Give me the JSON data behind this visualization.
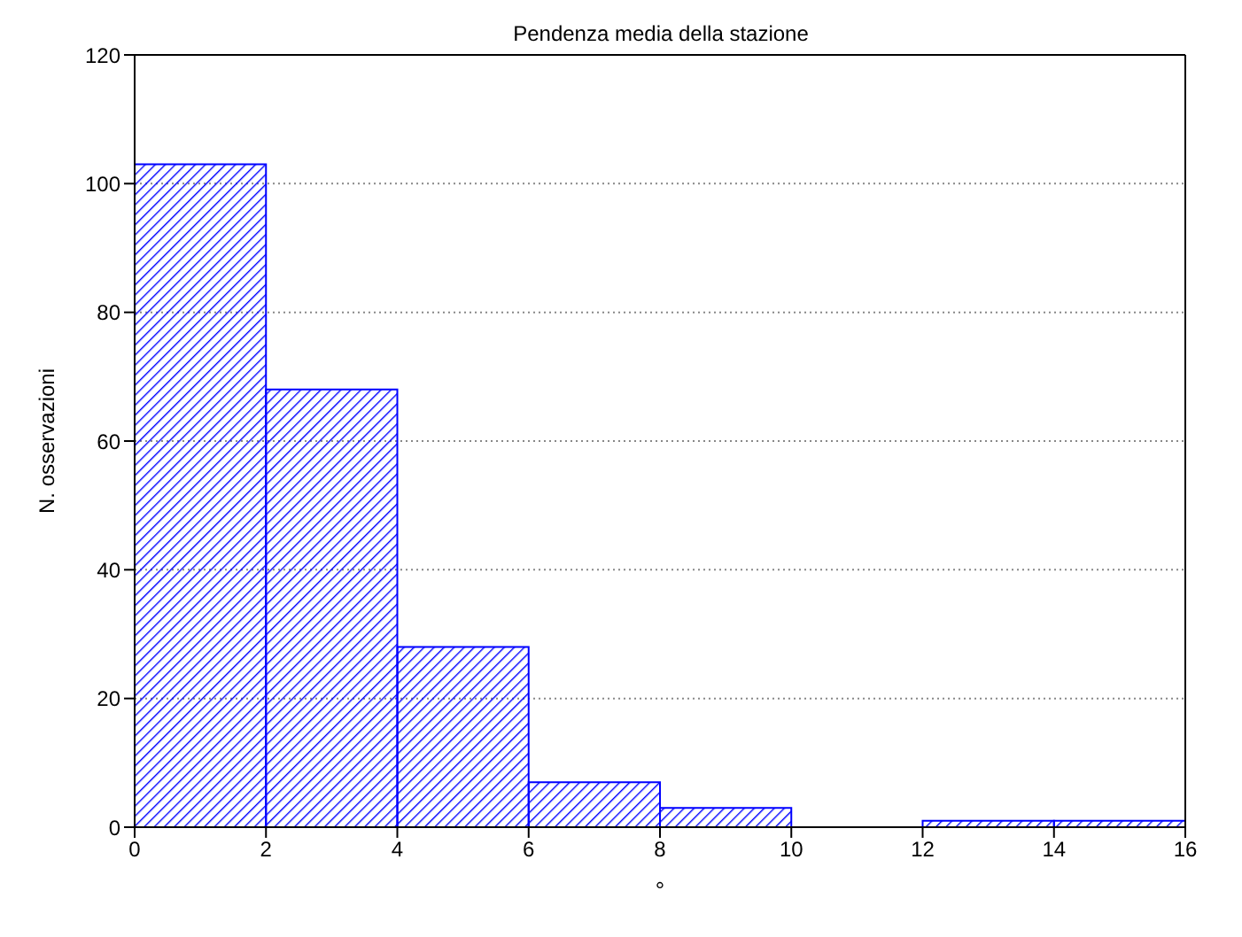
{
  "chart_data": {
    "type": "histogram",
    "title": "Pendenza media della stazione",
    "xlabel": "°",
    "ylabel": "N. osservazioni",
    "bins": [
      0,
      2,
      4,
      6,
      8,
      10,
      12,
      14,
      16
    ],
    "values": [
      103,
      68,
      28,
      7,
      3,
      0,
      1,
      1
    ],
    "color": "#0000ff",
    "xlim": [
      0,
      16
    ],
    "xticks": [
      0,
      2,
      4,
      6,
      8,
      10,
      12,
      14,
      16
    ],
    "ylim": [
      0,
      120
    ],
    "yticks": [
      0,
      20,
      40,
      60,
      80,
      100,
      120
    ],
    "grid": "y"
  }
}
